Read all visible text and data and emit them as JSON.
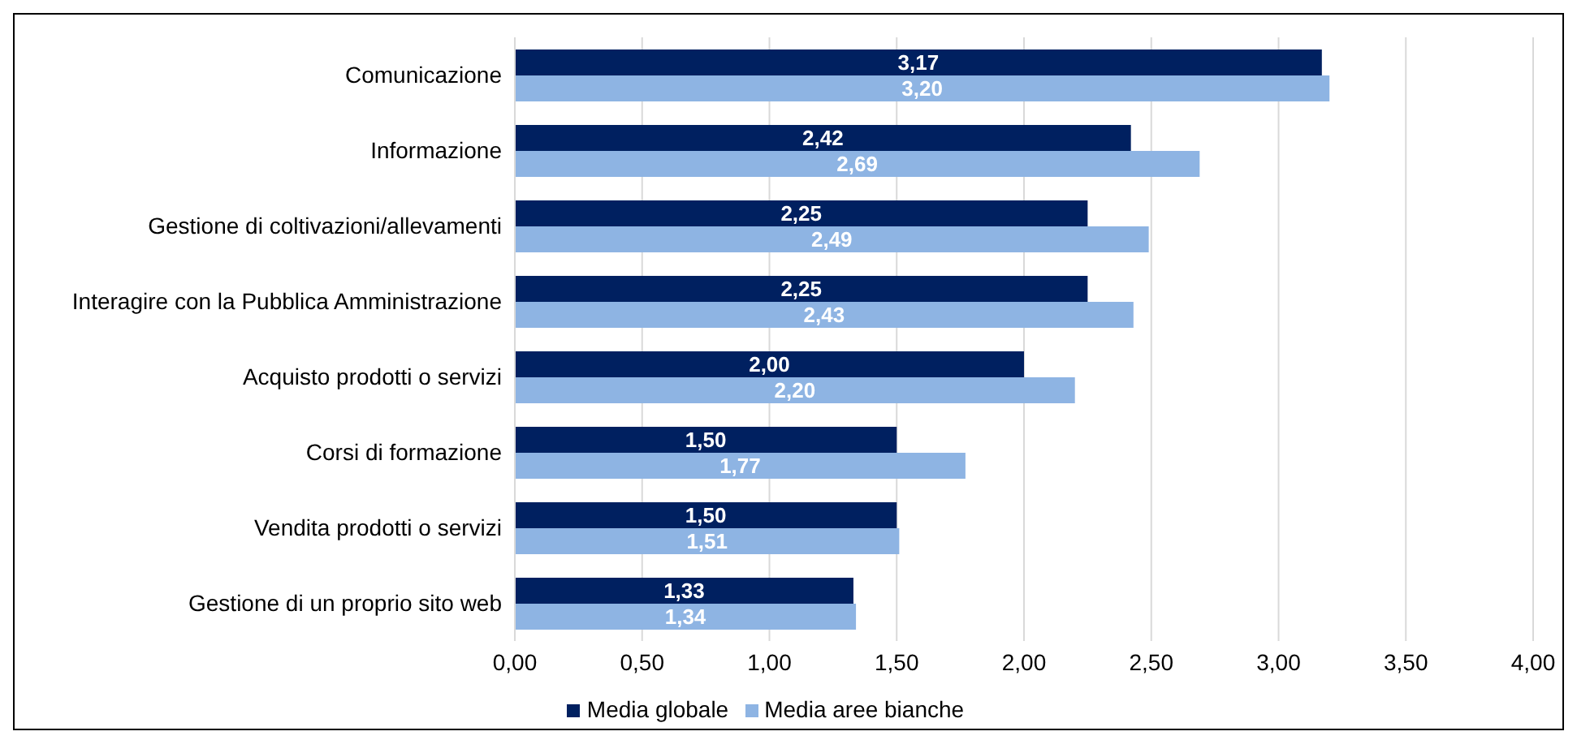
{
  "chart_data": {
    "type": "bar",
    "orientation": "horizontal",
    "categories": [
      "Comunicazione",
      "Informazione",
      "Gestione di coltivazioni/allevamenti",
      "Interagire con la Pubblica Amministrazione",
      "Acquisto prodotti o servizi",
      "Corsi di formazione",
      "Vendita prodotti o servizi",
      "Gestione di un proprio sito web"
    ],
    "series": [
      {
        "name": "Media globale",
        "color": "#002060",
        "values": [
          3.17,
          2.42,
          2.25,
          2.25,
          2.0,
          1.5,
          1.5,
          1.33
        ],
        "value_labels": [
          "3,17",
          "2,42",
          "2,25",
          "2,25",
          "2,00",
          "1,50",
          "1,50",
          "1,33"
        ]
      },
      {
        "name": "Media aree bianche",
        "color": "#8eb4e3",
        "values": [
          3.2,
          2.69,
          2.49,
          2.43,
          2.2,
          1.77,
          1.51,
          1.34
        ],
        "value_labels": [
          "3,20",
          "2,69",
          "2,49",
          "2,43",
          "2,20",
          "1,77",
          "1,51",
          "1,34"
        ]
      }
    ],
    "xlim": [
      0,
      4
    ],
    "xticks": [
      {
        "value": 0,
        "label": "0,00"
      },
      {
        "value": 0.5,
        "label": "0,50"
      },
      {
        "value": 1,
        "label": "1,00"
      },
      {
        "value": 1.5,
        "label": "1,50"
      },
      {
        "value": 2,
        "label": "2,00"
      },
      {
        "value": 2.5,
        "label": "2,50"
      },
      {
        "value": 3,
        "label": "3,00"
      },
      {
        "value": 3.5,
        "label": "3,50"
      },
      {
        "value": 4,
        "label": "4,00"
      }
    ],
    "grid": "x",
    "legend": "bottom"
  }
}
